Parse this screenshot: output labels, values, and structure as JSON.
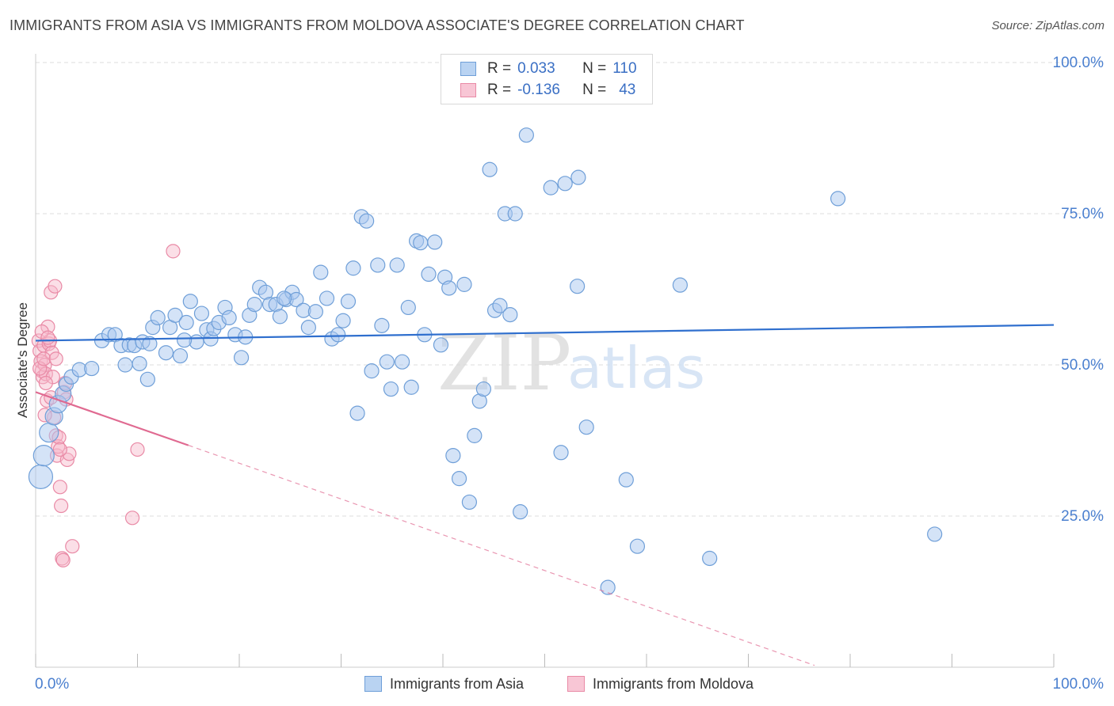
{
  "title": "IMMIGRANTS FROM ASIA VS IMMIGRANTS FROM MOLDOVA ASSOCIATE'S DEGREE CORRELATION CHART",
  "source": "Source: ZipAtlas.com",
  "watermark": {
    "zip": "ZIP",
    "atlas": "atlas"
  },
  "colors": {
    "asia_fill": "#a9c8ef",
    "asia_stroke": "#6f9fd8",
    "asia_line": "#2f6fce",
    "moldova_fill": "#f6b8ca",
    "moldova_stroke": "#e98aa6",
    "moldova_line": "#e06a91",
    "axis_label": "#4a7fcf",
    "grid": "#dddddd"
  },
  "legend": {
    "rows": [
      {
        "r_label": "R =",
        "r_value": "0.033",
        "n_label": "N =",
        "n_value": "110"
      },
      {
        "r_label": "R =",
        "r_value": "-0.136",
        "n_label": "N =",
        "n_value": "43"
      }
    ]
  },
  "bottom_legend": {
    "asia": "Immigrants from Asia",
    "moldova": "Immigrants from Moldova"
  },
  "chart_data": {
    "type": "scatter",
    "title": "IMMIGRANTS FROM ASIA VS IMMIGRANTS FROM MOLDOVA ASSOCIATE'S DEGREE CORRELATION CHART",
    "xlabel": "",
    "ylabel": "Associate's Degree",
    "xlim": [
      0,
      100
    ],
    "ylim": [
      0,
      100
    ],
    "x_tick_labels": [
      "0.0%",
      "100.0%"
    ],
    "y_tick_labels": [
      "100.0%",
      "75.0%",
      "50.0%",
      "25.0%"
    ],
    "y_ticks": [
      100,
      75,
      50,
      25
    ],
    "grid": true,
    "legend_position": "top-center",
    "series": [
      {
        "name": "Immigrants from Asia",
        "r": 0.033,
        "n": 110,
        "trend": {
          "x0": 0,
          "y0": 54.0,
          "x1": 100,
          "y1": 56.6
        },
        "points": [
          [
            0.5,
            31.5
          ],
          [
            0.8,
            35.0
          ],
          [
            1.3,
            38.8
          ],
          [
            1.8,
            41.5
          ],
          [
            2.2,
            43.5
          ],
          [
            2.7,
            45.2
          ],
          [
            3.0,
            46.8
          ],
          [
            3.5,
            48.0
          ],
          [
            4.3,
            49.2
          ],
          [
            5.5,
            49.4
          ],
          [
            6.5,
            54.0
          ],
          [
            7.2,
            55.0
          ],
          [
            7.8,
            55.0
          ],
          [
            8.4,
            53.2
          ],
          [
            8.8,
            50.0
          ],
          [
            9.2,
            53.3
          ],
          [
            9.7,
            53.2
          ],
          [
            10.2,
            50.2
          ],
          [
            10.5,
            53.8
          ],
          [
            11.0,
            47.6
          ],
          [
            11.2,
            53.5
          ],
          [
            11.5,
            56.2
          ],
          [
            12.0,
            57.8
          ],
          [
            12.8,
            52.0
          ],
          [
            13.2,
            56.2
          ],
          [
            13.7,
            58.2
          ],
          [
            14.2,
            51.5
          ],
          [
            14.8,
            57.0
          ],
          [
            15.2,
            60.5
          ],
          [
            15.8,
            53.8
          ],
          [
            16.3,
            58.5
          ],
          [
            16.8,
            55.8
          ],
          [
            17.2,
            54.3
          ],
          [
            17.5,
            56.0
          ],
          [
            18.0,
            57.0
          ],
          [
            18.6,
            59.5
          ],
          [
            19.0,
            57.8
          ],
          [
            19.6,
            55.0
          ],
          [
            20.2,
            51.2
          ],
          [
            21.0,
            58.2
          ],
          [
            21.5,
            60.0
          ],
          [
            22.0,
            62.8
          ],
          [
            22.6,
            62.0
          ],
          [
            23.0,
            60.0
          ],
          [
            23.6,
            60.0
          ],
          [
            24.0,
            58.0
          ],
          [
            24.6,
            60.8
          ],
          [
            25.2,
            62.0
          ],
          [
            25.6,
            60.8
          ],
          [
            26.3,
            59.0
          ],
          [
            26.8,
            56.2
          ],
          [
            27.5,
            58.8
          ],
          [
            28.0,
            65.3
          ],
          [
            28.6,
            61.0
          ],
          [
            29.1,
            54.3
          ],
          [
            29.7,
            55.0
          ],
          [
            30.2,
            57.3
          ],
          [
            30.7,
            60.5
          ],
          [
            31.2,
            66.0
          ],
          [
            31.6,
            42.0
          ],
          [
            32.0,
            74.5
          ],
          [
            32.5,
            73.8
          ],
          [
            33.0,
            49.0
          ],
          [
            33.6,
            66.5
          ],
          [
            34.0,
            56.5
          ],
          [
            34.5,
            50.5
          ],
          [
            34.9,
            46.0
          ],
          [
            35.5,
            66.5
          ],
          [
            36.0,
            50.5
          ],
          [
            36.6,
            59.5
          ],
          [
            36.9,
            46.3
          ],
          [
            37.4,
            70.5
          ],
          [
            37.8,
            70.2
          ],
          [
            38.2,
            55.0
          ],
          [
            38.6,
            65.0
          ],
          [
            39.2,
            70.3
          ],
          [
            39.8,
            53.3
          ],
          [
            40.2,
            64.5
          ],
          [
            40.6,
            62.7
          ],
          [
            41.0,
            35.0
          ],
          [
            41.6,
            31.2
          ],
          [
            42.1,
            63.3
          ],
          [
            42.6,
            27.3
          ],
          [
            43.1,
            38.3
          ],
          [
            43.6,
            44.0
          ],
          [
            44.0,
            46.0
          ],
          [
            44.6,
            82.3
          ],
          [
            45.1,
            59.0
          ],
          [
            45.6,
            59.8
          ],
          [
            46.1,
            75.0
          ],
          [
            46.6,
            58.3
          ],
          [
            47.1,
            75.0
          ],
          [
            47.6,
            25.7
          ],
          [
            48.2,
            88.0
          ],
          [
            50.6,
            79.3
          ],
          [
            51.6,
            35.5
          ],
          [
            52.0,
            80.0
          ],
          [
            53.2,
            63.0
          ],
          [
            53.3,
            81.0
          ],
          [
            54.1,
            39.7
          ],
          [
            56.2,
            13.2
          ],
          [
            58.0,
            31.0
          ],
          [
            59.1,
            20.0
          ],
          [
            63.3,
            63.2
          ],
          [
            66.2,
            18.0
          ],
          [
            78.8,
            77.5
          ],
          [
            88.3,
            22.0
          ],
          [
            14.6,
            54.1
          ],
          [
            24.4,
            61.0
          ],
          [
            20.6,
            54.6
          ]
        ]
      },
      {
        "name": "Immigrants from Moldova",
        "r": -0.136,
        "n": 43,
        "trend": {
          "x0": 0,
          "y0": 45.5,
          "x1": 15.0,
          "y1": 36.7,
          "dash_x1": 76.5,
          "dash_y1": 0.3
        },
        "points": [
          [
            0.3,
            54.0
          ],
          [
            0.4,
            52.3
          ],
          [
            0.5,
            50.6
          ],
          [
            0.6,
            49.0
          ],
          [
            0.7,
            48.0
          ],
          [
            0.8,
            53.2
          ],
          [
            0.9,
            50.0
          ],
          [
            1.0,
            48.5
          ],
          [
            1.1,
            44.1
          ],
          [
            1.2,
            56.3
          ],
          [
            1.3,
            53.5
          ],
          [
            1.4,
            54.0
          ],
          [
            1.5,
            62.0
          ],
          [
            1.6,
            52.0
          ],
          [
            1.7,
            48.0
          ],
          [
            1.8,
            41.3
          ],
          [
            1.9,
            63.0
          ],
          [
            2.0,
            38.3
          ],
          [
            2.1,
            35.0
          ],
          [
            2.2,
            36.5
          ],
          [
            2.3,
            38.0
          ],
          [
            2.4,
            29.8
          ],
          [
            2.5,
            26.7
          ],
          [
            2.6,
            18.0
          ],
          [
            2.7,
            17.7
          ],
          [
            2.8,
            45.5
          ],
          [
            2.9,
            47.0
          ],
          [
            3.0,
            44.3
          ],
          [
            3.1,
            34.3
          ],
          [
            3.3,
            35.3
          ],
          [
            3.6,
            20.0
          ],
          [
            9.5,
            24.7
          ],
          [
            10.0,
            36.0
          ],
          [
            13.5,
            68.8
          ],
          [
            0.4,
            49.4
          ],
          [
            0.6,
            55.5
          ],
          [
            0.8,
            51.0
          ],
          [
            1.2,
            54.5
          ],
          [
            1.5,
            44.6
          ],
          [
            2.0,
            51.0
          ],
          [
            1.0,
            47.0
          ],
          [
            2.4,
            36.0
          ],
          [
            0.9,
            41.7
          ]
        ]
      }
    ]
  }
}
